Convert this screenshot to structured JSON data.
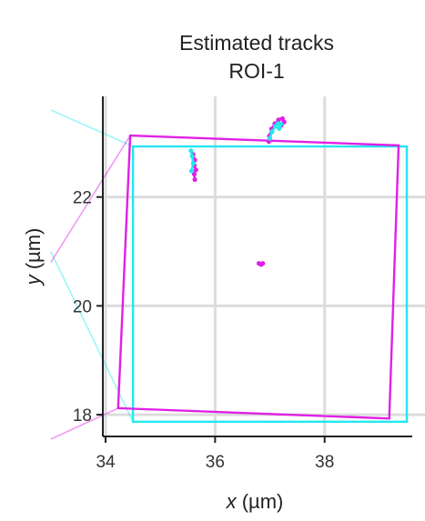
{
  "chart_data": {
    "type": "scatter",
    "title": "Estimated tracks",
    "subtitle": "ROI-1",
    "xlabel_var": "x",
    "xlabel_unit": " (µm)",
    "ylabel_var": "y",
    "ylabel_unit": " (µm)",
    "xlim": [
      33.95,
      39.6
    ],
    "ylim": [
      17.6,
      23.85
    ],
    "xticks": [
      34,
      36,
      38
    ],
    "yticks": [
      18,
      20,
      22
    ],
    "xtick_labels": [
      "34",
      "36",
      "38"
    ],
    "ytick_labels": [
      "18",
      "20",
      "22"
    ],
    "grid": true,
    "colors": {
      "magenta": "#e020e6",
      "cyan": "#22e8ee",
      "grid": "#dcdcdc",
      "axis": "#222222"
    },
    "rois": [
      {
        "name": "cyan-roi",
        "color": "#22e8ee",
        "corners": [
          [
            34.5,
            22.93
          ],
          [
            39.5,
            22.93
          ],
          [
            39.5,
            17.87
          ],
          [
            34.5,
            17.87
          ]
        ]
      },
      {
        "name": "magenta-roi",
        "color": "#e020e6",
        "corners": [
          [
            34.45,
            23.13
          ],
          [
            39.35,
            22.95
          ],
          [
            39.18,
            17.93
          ],
          [
            34.23,
            18.12
          ]
        ]
      }
    ],
    "connector_lines": [
      {
        "color": "#22e8ee",
        "from": [
          33.0,
          23.6
        ],
        "to": [
          34.5,
          22.93
        ]
      },
      {
        "color": "#22e8ee",
        "from": [
          33.0,
          21.0
        ],
        "to": [
          34.5,
          17.87
        ]
      },
      {
        "color": "#e020e6",
        "from": [
          33.0,
          20.8
        ],
        "to": [
          34.45,
          23.13
        ]
      },
      {
        "color": "#e020e6",
        "from": [
          33.0,
          17.55
        ],
        "to": [
          34.23,
          18.12
        ]
      }
    ],
    "tracks": [
      {
        "color": "#e020e6",
        "points": [
          [
            35.6,
            22.78
          ],
          [
            35.63,
            22.68
          ],
          [
            35.62,
            22.58
          ],
          [
            35.65,
            22.5
          ],
          [
            35.62,
            22.42
          ],
          [
            35.63,
            22.32
          ]
        ]
      },
      {
        "color": "#22e8ee",
        "points": [
          [
            35.56,
            22.85
          ],
          [
            35.58,
            22.75
          ],
          [
            35.6,
            22.62
          ],
          [
            35.57,
            22.48
          ]
        ]
      },
      {
        "color": "#e020e6",
        "points": [
          [
            36.98,
            23.02
          ],
          [
            36.99,
            23.12
          ],
          [
            37.03,
            23.25
          ],
          [
            37.09,
            23.35
          ],
          [
            37.16,
            23.42
          ],
          [
            37.23,
            23.44
          ],
          [
            37.26,
            23.38
          ],
          [
            37.21,
            23.32
          ]
        ]
      },
      {
        "color": "#22e8ee",
        "points": [
          [
            37.0,
            23.08
          ],
          [
            37.04,
            23.2
          ],
          [
            37.1,
            23.3
          ],
          [
            37.15,
            23.35
          ],
          [
            37.2,
            23.34
          ],
          [
            37.17,
            23.26
          ]
        ]
      },
      {
        "color": "#e020e6",
        "points": [
          [
            36.8,
            20.78
          ],
          [
            36.84,
            20.76
          ],
          [
            36.87,
            20.78
          ]
        ]
      }
    ]
  }
}
